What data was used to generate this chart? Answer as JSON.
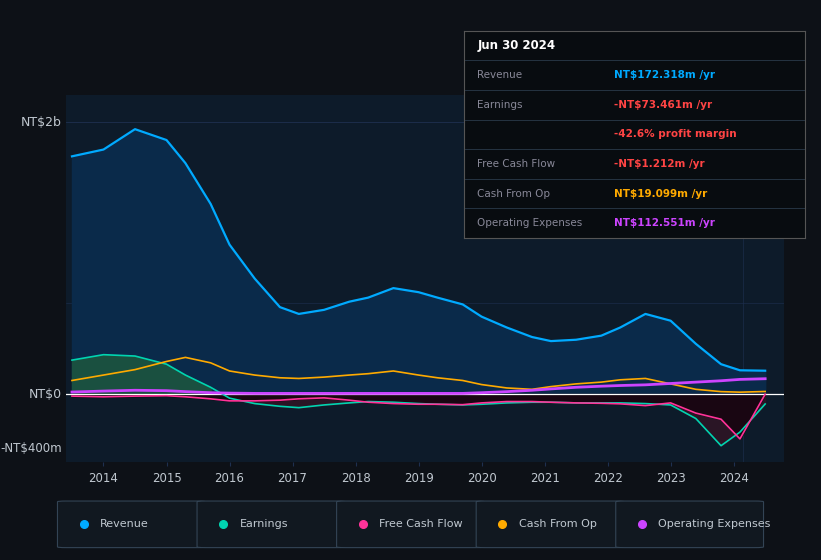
{
  "bg_color": "#0d1117",
  "plot_bg_color": "#0d1b2a",
  "grid_color": "#1e3050",
  "text_color": "#c0c8d0",
  "years": [
    2013.5,
    2014.0,
    2014.5,
    2015.0,
    2015.3,
    2015.7,
    2016.0,
    2016.4,
    2016.8,
    2017.1,
    2017.5,
    2017.9,
    2018.2,
    2018.6,
    2019.0,
    2019.3,
    2019.7,
    2020.0,
    2020.4,
    2020.8,
    2021.1,
    2021.5,
    2021.9,
    2022.2,
    2022.6,
    2023.0,
    2023.4,
    2023.8,
    2024.1,
    2024.5
  ],
  "revenue": [
    1750,
    1800,
    1950,
    1870,
    1700,
    1400,
    1100,
    850,
    640,
    590,
    620,
    680,
    710,
    780,
    750,
    710,
    660,
    570,
    490,
    420,
    390,
    400,
    430,
    490,
    590,
    540,
    370,
    220,
    175,
    172
  ],
  "earnings": [
    250,
    290,
    280,
    220,
    140,
    50,
    -30,
    -70,
    -90,
    -100,
    -80,
    -65,
    -55,
    -60,
    -70,
    -75,
    -80,
    -75,
    -65,
    -60,
    -60,
    -65,
    -65,
    -65,
    -70,
    -80,
    -180,
    -380,
    -280,
    -73
  ],
  "free_cash_flow": [
    -15,
    -20,
    -15,
    -12,
    -20,
    -35,
    -50,
    -50,
    -45,
    -35,
    -28,
    -45,
    -60,
    -70,
    -75,
    -75,
    -78,
    -65,
    -55,
    -55,
    -60,
    -65,
    -68,
    -72,
    -85,
    -65,
    -140,
    -185,
    -330,
    -1
  ],
  "cash_from_op": [
    100,
    140,
    180,
    240,
    270,
    230,
    170,
    140,
    120,
    115,
    125,
    140,
    150,
    170,
    140,
    120,
    100,
    70,
    45,
    35,
    55,
    75,
    88,
    105,
    115,
    75,
    35,
    18,
    14,
    19
  ],
  "operating_expenses": [
    15,
    22,
    28,
    25,
    18,
    10,
    7,
    5,
    5,
    5,
    5,
    5,
    5,
    5,
    5,
    5,
    5,
    10,
    18,
    28,
    38,
    50,
    58,
    63,
    68,
    78,
    88,
    98,
    108,
    113
  ],
  "revenue_color": "#00aaff",
  "earnings_color": "#00d4b0",
  "free_cash_flow_color": "#ff3399",
  "cash_from_op_color": "#ffaa00",
  "operating_expenses_color": "#cc44ff",
  "revenue_fill_color": "#0a2a4a",
  "earnings_pos_fill": "#1a5040",
  "earnings_neg_fill": "#2a1525",
  "fcf_neg_fill": "#180510",
  "ylim_top": 2200,
  "ylim_bottom": -500,
  "xlim_left": 2013.4,
  "xlim_right": 2024.8,
  "x_ticks": [
    2014,
    2015,
    2016,
    2017,
    2018,
    2019,
    2020,
    2021,
    2022,
    2023,
    2024
  ],
  "y_gridline_top": 2000,
  "y_gridline_mid": 667,
  "y_label_top": "NT$2b",
  "y_label_zero": "NT$0",
  "y_label_neg": "-NT$400m",
  "y_label_neg_val": -400,
  "info_box": {
    "date": "Jun 30 2024",
    "revenue_label": "Revenue",
    "revenue_val": "NT$172.318m /yr",
    "revenue_color": "#00aaff",
    "earnings_label": "Earnings",
    "earnings_val": "-NT$73.461m /yr",
    "earnings_color": "#ff4444",
    "profit_margin": "-42.6% profit margin",
    "profit_margin_color": "#ff4444",
    "fcf_label": "Free Cash Flow",
    "fcf_val": "-NT$1.212m /yr",
    "fcf_color": "#ff4444",
    "cash_op_label": "Cash From Op",
    "cash_op_val": "NT$19.099m /yr",
    "cash_op_color": "#ffaa00",
    "op_exp_label": "Operating Expenses",
    "op_exp_val": "NT$112.551m /yr",
    "op_exp_color": "#cc44ff",
    "box_bg": "#080c10",
    "box_border": "#555555"
  },
  "legend_labels": [
    "Revenue",
    "Earnings",
    "Free Cash Flow",
    "Cash From Op",
    "Operating Expenses"
  ],
  "legend_colors": [
    "#00aaff",
    "#00d4b0",
    "#ff3399",
    "#ffaa00",
    "#cc44ff"
  ],
  "legend_bg": "#111820",
  "legend_border": "#334455"
}
